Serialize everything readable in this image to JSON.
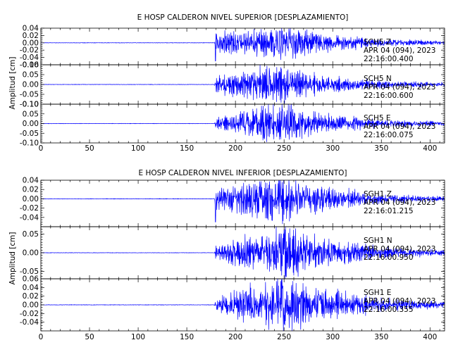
{
  "chart_data": [
    {
      "type": "line",
      "title": "E HOSP CALDERON NIVEL SUPERIOR [DESPLAZAMIENTO]",
      "ylabel": "Amplitud [cm]",
      "xlim": [
        0,
        415
      ],
      "xticks": [
        "0",
        "50",
        "100",
        "150",
        "200",
        "250",
        "300",
        "350",
        "400"
      ],
      "grid": false,
      "series": [
        {
          "name": "SCH5 Z",
          "station": "SCH5",
          "component": "Z",
          "date": "APR 04 (094), 2023",
          "time": "22:16:00.400",
          "ylim": [
            -0.06,
            0.04
          ],
          "yticks": [
            "0.04",
            "0.02",
            "0.00",
            "-0.02",
            "-0.04",
            "-0.06"
          ],
          "onset": 179,
          "spike": -0.05,
          "peak": 0.04,
          "peak_time": 255,
          "coda": 0.004,
          "x": [
            0,
            100,
            178,
            180,
            200,
            225,
            250,
            275,
            300,
            350,
            415
          ],
          "y_envelope": [
            0.001,
            0.001,
            0.001,
            0.022,
            0.024,
            0.03,
            0.04,
            0.028,
            0.018,
            0.008,
            0.004
          ]
        },
        {
          "name": "SCH5 N",
          "station": "SCH5",
          "component": "N",
          "date": "APR 04 (094), 2023",
          "time": "22:16:00.600",
          "ylim": [
            -0.1,
            0.1
          ],
          "yticks": [
            "0.10",
            "0.05",
            "0.00",
            "-0.05",
            "-0.10"
          ],
          "onset": 179,
          "spike": 0,
          "peak": 0.09,
          "peak_time": 235,
          "coda": 0.008,
          "x": [
            0,
            100,
            178,
            180,
            200,
            225,
            250,
            275,
            300,
            350,
            415
          ],
          "y_envelope": [
            0.002,
            0.002,
            0.002,
            0.03,
            0.05,
            0.08,
            0.07,
            0.045,
            0.03,
            0.015,
            0.008
          ]
        },
        {
          "name": "SCH5 E",
          "station": "SCH5",
          "component": "E",
          "date": "APR 04 (094), 2023",
          "time": "22:16:00.075",
          "ylim": [
            -0.1,
            0.1
          ],
          "yticks": [
            "0.10",
            "0.05",
            "0.00",
            "-0.05",
            "-0.10"
          ],
          "onset": 179,
          "spike": 0,
          "peak": 0.095,
          "peak_time": 248,
          "coda": 0.008,
          "x": [
            0,
            100,
            178,
            180,
            200,
            225,
            250,
            275,
            300,
            350,
            415
          ],
          "y_envelope": [
            0.002,
            0.002,
            0.002,
            0.025,
            0.045,
            0.075,
            0.09,
            0.055,
            0.035,
            0.015,
            0.008
          ]
        }
      ]
    },
    {
      "type": "line",
      "title": "E HOSP CALDERON NIVEL INFERIOR [DESPLAZAMIENTO]",
      "ylabel": "Amplitud [cm]",
      "xlim": [
        0,
        415
      ],
      "xticks": [
        "0",
        "50",
        "100",
        "150",
        "200",
        "250",
        "300",
        "350",
        "400"
      ],
      "grid": false,
      "series": [
        {
          "name": "SGH1 Z",
          "station": "SGH1",
          "component": "Z",
          "date": "APR 04 (094), 2023",
          "time": "22:16:01.215",
          "ylim": [
            -0.06,
            0.04
          ],
          "yticks": [
            "0.04",
            "0.02",
            "0.00",
            "-0.02",
            "-0.04"
          ],
          "onset": 179,
          "spike": -0.05,
          "peak": 0.04,
          "peak_time": 255,
          "coda": 0.004,
          "x": [
            0,
            100,
            178,
            180,
            200,
            225,
            250,
            275,
            300,
            350,
            415
          ],
          "y_envelope": [
            0.001,
            0.001,
            0.001,
            0.022,
            0.025,
            0.032,
            0.04,
            0.03,
            0.02,
            0.008,
            0.004
          ]
        },
        {
          "name": "SGH1 N",
          "station": "SGH1",
          "component": "N",
          "date": "APR 04 (094), 2023",
          "time": "22:16:00.950",
          "ylim": [
            -0.07,
            0.07
          ],
          "yticks": [
            "0.05",
            "0.00",
            "-0.05"
          ],
          "onset": 179,
          "spike": 0,
          "peak": 0.06,
          "peak_time": 250,
          "coda": 0.006,
          "x": [
            0,
            100,
            178,
            180,
            200,
            225,
            250,
            275,
            300,
            350,
            415
          ],
          "y_envelope": [
            0.001,
            0.001,
            0.001,
            0.015,
            0.03,
            0.04,
            0.06,
            0.04,
            0.03,
            0.012,
            0.006
          ]
        },
        {
          "name": "SGH1 E",
          "station": "SGH1",
          "component": "E",
          "date": "APR 04 (094), 2023",
          "time": "22:16:00.355",
          "ylim": [
            -0.06,
            0.06
          ],
          "yticks": [
            "0.06",
            "0.04",
            "0.02",
            "0.00",
            "-0.02",
            "-0.04"
          ],
          "onset": 179,
          "spike": 0,
          "peak": 0.055,
          "peak_time": 248,
          "coda": 0.006,
          "x": [
            0,
            100,
            178,
            180,
            200,
            225,
            250,
            275,
            300,
            350,
            415
          ],
          "y_envelope": [
            0.001,
            0.001,
            0.001,
            0.012,
            0.025,
            0.04,
            0.055,
            0.035,
            0.025,
            0.012,
            0.006
          ]
        }
      ]
    }
  ],
  "colors": {
    "trace": "#0000ff",
    "axes": "#000000"
  }
}
